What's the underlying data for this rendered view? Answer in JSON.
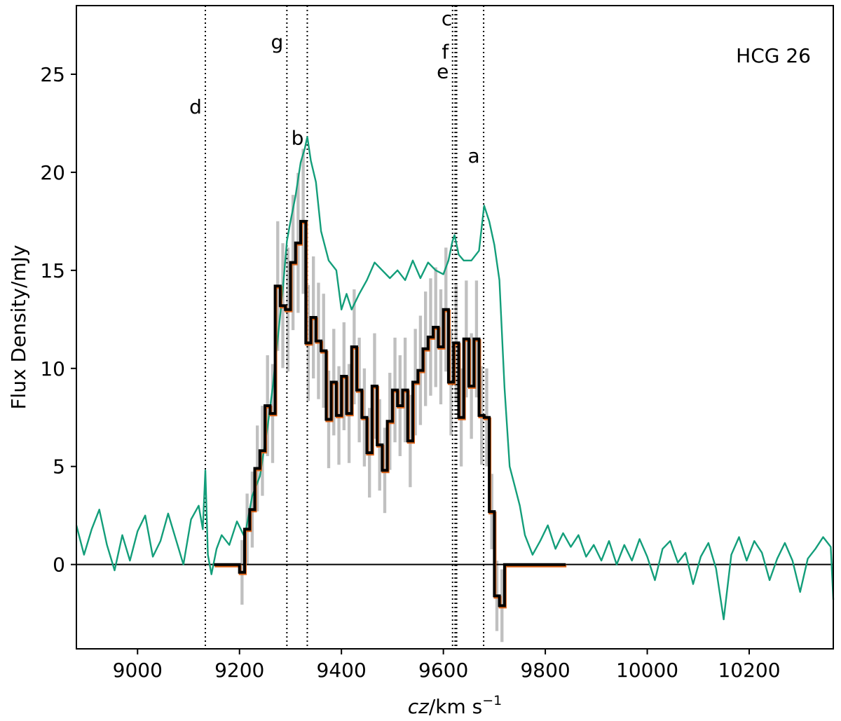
{
  "chart_data": {
    "type": "line",
    "title": "",
    "annotation_text": "HCG 26",
    "xlabel": "cz/km s⁻¹",
    "xlabel_parts": {
      "var": "cz",
      "unit": "/km s",
      "exp": "−1"
    },
    "ylabel": "Flux Density/mJy",
    "xlim": [
      8880,
      10365
    ],
    "ylim": [
      -4.3,
      28.5
    ],
    "xticks": [
      9000,
      9200,
      9400,
      9600,
      9800,
      10000,
      10200
    ],
    "yticks": [
      0,
      5,
      10,
      15,
      20,
      25
    ],
    "grid": false,
    "legend": "none",
    "colors": {
      "single_dish": "#139e7a",
      "vla": "#000000",
      "uncertainty": "#c0c0c0",
      "model": "#e0661a"
    },
    "vlines": [
      {
        "label": "d",
        "x": 9133,
        "label_y": 23.0
      },
      {
        "label": "g",
        "x": 9293,
        "label_y": 26.3
      },
      {
        "label": "b",
        "x": 9333,
        "label_y": 21.4
      },
      {
        "label": "e",
        "x": 9618,
        "label_y": 24.8
      },
      {
        "label": "f",
        "x": 9623,
        "label_y": 25.8
      },
      {
        "label": "c",
        "x": 9626,
        "label_y": 27.5
      },
      {
        "label": "a",
        "x": 9679,
        "label_y": 20.5
      }
    ],
    "series": [
      {
        "style": "thin-line",
        "x": [
          8880,
          8895,
          8910,
          8925,
          8940,
          8955,
          8970,
          8985,
          9000,
          9015,
          9030,
          9045,
          9060,
          9075,
          9090,
          9105,
          9120,
          9128,
          9133,
          9138,
          9145,
          9155,
          9165,
          9180,
          9195,
          9210,
          9225,
          9240,
          9255,
          9265,
          9275,
          9285,
          9293,
          9300,
          9310,
          9320,
          9328,
          9333,
          9340,
          9350,
          9360,
          9375,
          9390,
          9400,
          9410,
          9420,
          9435,
          9450,
          9465,
          9480,
          9495,
          9510,
          9525,
          9540,
          9555,
          9570,
          9585,
          9600,
          9610,
          9618,
          9622,
          9630,
          9640,
          9655,
          9670,
          9680,
          9690,
          9700,
          9710,
          9720,
          9730,
          9740,
          9750,
          9760,
          9775,
          9790,
          9805,
          9820,
          9835,
          9850,
          9865,
          9880,
          9895,
          9910,
          9925,
          9940,
          9955,
          9970,
          9985,
          10000,
          10015,
          10030,
          10045,
          10060,
          10075,
          10090,
          10105,
          10120,
          10135,
          10150,
          10165,
          10180,
          10195,
          10210,
          10225,
          10240,
          10255,
          10270,
          10285,
          10300,
          10315,
          10330,
          10345,
          10360,
          10365
        ],
        "y": [
          2.0,
          0.5,
          1.8,
          2.8,
          1.0,
          -0.3,
          1.5,
          0.2,
          1.7,
          2.5,
          0.4,
          1.2,
          2.6,
          1.3,
          0.0,
          2.3,
          3.0,
          1.8,
          4.8,
          0.5,
          -0.5,
          0.8,
          1.5,
          1.0,
          2.2,
          1.4,
          3.5,
          4.5,
          7.0,
          9.0,
          11.5,
          14.0,
          16.5,
          17.5,
          18.8,
          20.5,
          21.2,
          21.8,
          20.6,
          19.5,
          17.0,
          15.5,
          15.0,
          13.0,
          13.8,
          13.0,
          13.8,
          14.5,
          15.4,
          15.0,
          14.6,
          15.0,
          14.5,
          15.5,
          14.6,
          15.4,
          15.0,
          14.8,
          15.5,
          16.5,
          16.8,
          15.8,
          15.5,
          15.5,
          16.0,
          18.3,
          17.5,
          16.3,
          14.5,
          9.0,
          5.0,
          4.0,
          3.0,
          1.5,
          0.5,
          1.2,
          2.0,
          0.8,
          1.6,
          0.9,
          1.5,
          0.4,
          1.0,
          0.2,
          1.2,
          0.0,
          1.0,
          0.2,
          1.3,
          0.4,
          -0.8,
          0.8,
          1.2,
          0.1,
          0.6,
          -1.0,
          0.4,
          1.1,
          -0.2,
          -2.8,
          0.5,
          1.4,
          0.2,
          1.2,
          0.6,
          -0.8,
          0.3,
          1.1,
          0.2,
          -1.4,
          0.3,
          0.8,
          1.4,
          0.9,
          -1.8
        ]
      },
      {
        "style": "step",
        "x": [
          9155,
          9165,
          9175,
          9185,
          9195,
          9205,
          9215,
          9225,
          9235,
          9245,
          9255,
          9265,
          9275,
          9285,
          9295,
          9305,
          9315,
          9325,
          9335,
          9345,
          9355,
          9365,
          9375,
          9385,
          9395,
          9405,
          9415,
          9425,
          9435,
          9445,
          9455,
          9465,
          9475,
          9485,
          9495,
          9505,
          9515,
          9525,
          9535,
          9545,
          9555,
          9565,
          9575,
          9585,
          9595,
          9605,
          9615,
          9625,
          9635,
          9645,
          9655,
          9665,
          9675,
          9685,
          9695,
          9705,
          9715,
          9725,
          9735,
          9745,
          9755,
          9765,
          9775,
          9785,
          9795,
          9805,
          9815,
          9825,
          9835
        ],
        "y": [
          0.0,
          0.0,
          0.0,
          0.0,
          0.0,
          -0.4,
          1.8,
          2.8,
          4.9,
          5.8,
          8.1,
          7.7,
          14.2,
          13.2,
          13.0,
          15.4,
          16.4,
          17.5,
          11.3,
          12.6,
          11.4,
          10.9,
          7.4,
          9.3,
          7.6,
          9.6,
          7.7,
          11.1,
          8.9,
          7.5,
          5.7,
          9.1,
          6.1,
          4.8,
          7.3,
          8.9,
          8.1,
          8.9,
          6.3,
          9.3,
          9.9,
          11.0,
          11.6,
          12.1,
          11.1,
          13.0,
          9.3,
          11.3,
          7.5,
          11.5,
          9.1,
          11.5,
          7.6,
          7.5,
          2.7,
          -1.6,
          -2.1,
          0.0,
          0.0,
          0.0,
          0.0,
          0.0,
          0.0,
          0.0,
          0.0,
          0.0,
          0.0,
          0.0,
          0.0
        ]
      }
    ]
  }
}
